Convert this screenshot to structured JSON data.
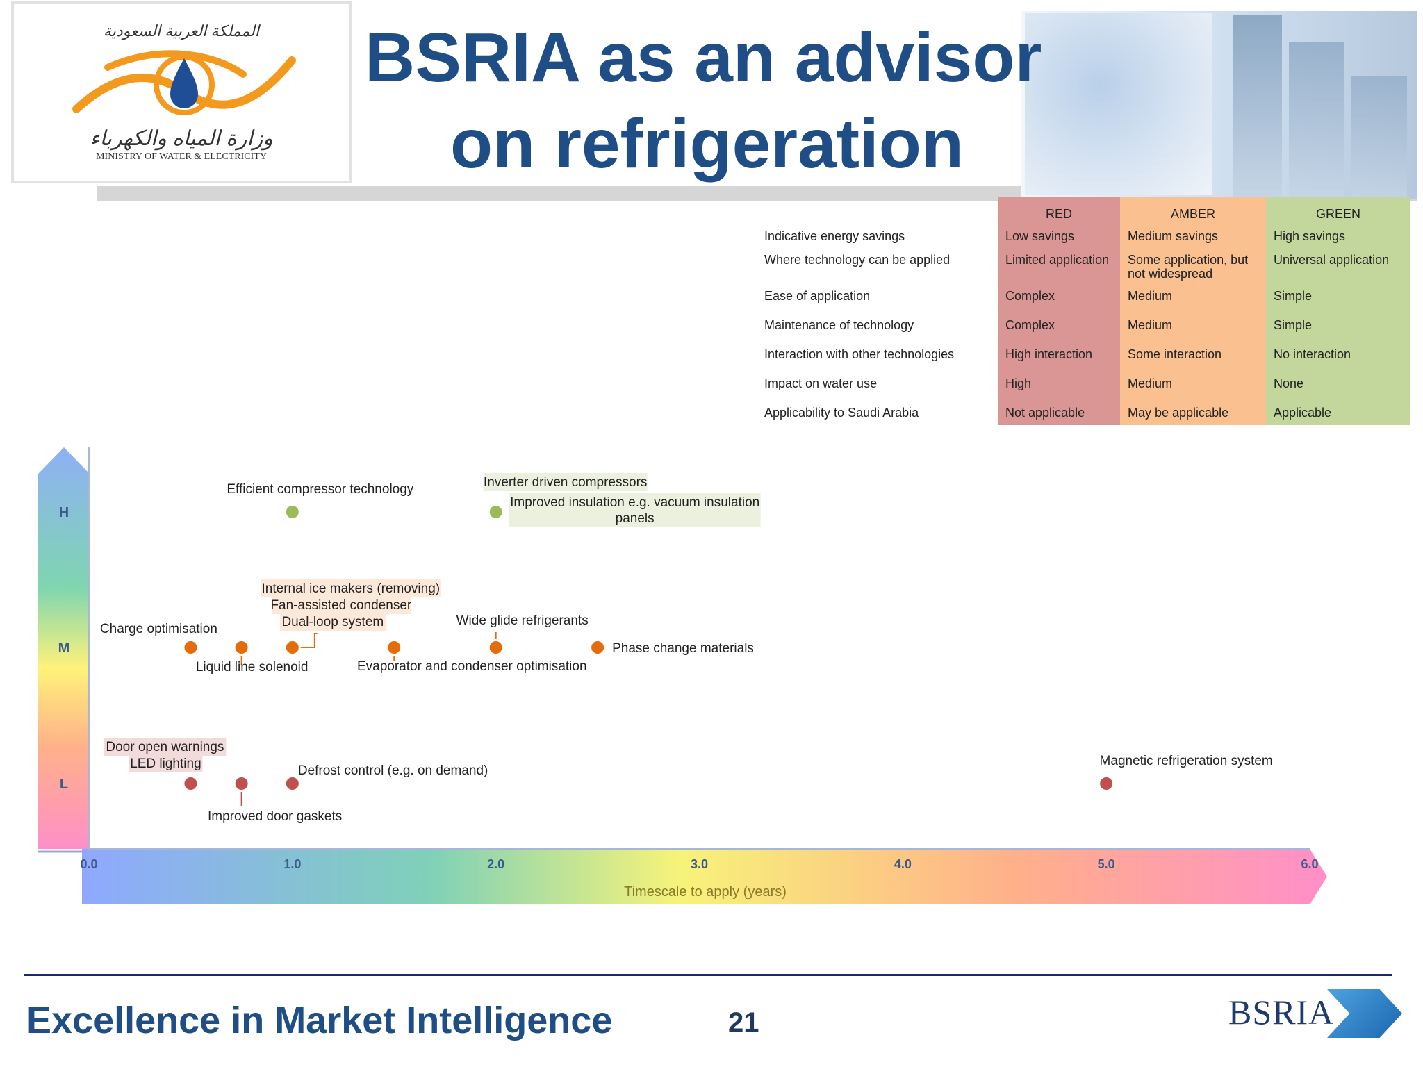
{
  "header": {
    "title_line1": "BSRIA as an advisor",
    "title_line2": "on refrigeration",
    "logo": {
      "arabic_top": "المملكة العربية السعودية",
      "arabic_bottom": "وزارة المياه والكهرباء",
      "english": "MINISTRY OF WATER & ELECTRICITY"
    }
  },
  "legend": {
    "headers": [
      "RED",
      "AMBER",
      "GREEN"
    ],
    "colors": {
      "red": "#d99694",
      "amber": "#fac090",
      "green": "#c3d69b"
    },
    "rows": [
      {
        "label": "Indicative energy savings",
        "red": "Low savings",
        "amber": "Medium savings",
        "green": "High savings"
      },
      {
        "label": "Where technology can be applied",
        "red": "Limited application",
        "amber": "Some application, but not widespread",
        "green": "Universal application"
      },
      {
        "label": "Ease of application",
        "red": "Complex",
        "amber": "Medium",
        "green": "Simple"
      },
      {
        "label": "Maintenance of technology",
        "red": "Complex",
        "amber": "Medium",
        "green": "Simple"
      },
      {
        "label": "Interaction with other technologies",
        "red": "High interaction",
        "amber": "Some interaction",
        "green": "No interaction"
      },
      {
        "label": "Impact on water use",
        "red": "High",
        "amber": "Medium",
        "green": "None"
      },
      {
        "label": "Applicability to Saudi Arabia",
        "red": "Not applicable",
        "amber": "May be applicable",
        "green": "Applicable"
      }
    ]
  },
  "chart_data": {
    "type": "scatter",
    "xlabel": "Timescale to apply (years)",
    "xlim": [
      0,
      6
    ],
    "x_ticks": [
      "0.0",
      "1.0",
      "2.0",
      "3.0",
      "4.0",
      "5.0",
      "6.0"
    ],
    "y_categories": [
      "L",
      "M",
      "H"
    ],
    "colors": {
      "green": "#9bbb59",
      "amber": "#e46c0a",
      "red": "#c0504d"
    },
    "points": [
      {
        "x": 1.0,
        "y": "H",
        "color": "green",
        "labels": [
          "Efficient compressor technology"
        ]
      },
      {
        "x": 2.0,
        "y": "H",
        "color": "green",
        "labels": [
          "Inverter driven compressors",
          "Improved insulation e.g. vacuum insulation panels"
        ]
      },
      {
        "x": 0.5,
        "y": "M",
        "color": "amber",
        "labels": [
          "Charge optimisation"
        ]
      },
      {
        "x": 0.75,
        "y": "M",
        "color": "amber",
        "labels": [
          "Liquid line solenoid"
        ]
      },
      {
        "x": 1.0,
        "y": "M",
        "color": "amber",
        "labels": [
          "Internal ice makers (removing)",
          "Fan-assisted condenser",
          "Dual-loop system"
        ]
      },
      {
        "x": 1.5,
        "y": "M",
        "color": "amber",
        "labels": [
          "Evaporator and condenser optimisation"
        ]
      },
      {
        "x": 2.0,
        "y": "M",
        "color": "amber",
        "labels": [
          "Wide glide refrigerants"
        ]
      },
      {
        "x": 2.5,
        "y": "M",
        "color": "amber",
        "labels": [
          "Phase change materials"
        ]
      },
      {
        "x": 0.5,
        "y": "L",
        "color": "red",
        "labels": [
          "Door open warnings",
          "LED lighting"
        ]
      },
      {
        "x": 0.75,
        "y": "L",
        "color": "red",
        "labels": [
          "Improved door gaskets"
        ]
      },
      {
        "x": 1.0,
        "y": "L",
        "color": "red",
        "labels": [
          "Defrost control (e.g. on demand)"
        ]
      },
      {
        "x": 5.0,
        "y": "L",
        "color": "red",
        "labels": [
          "Magnetic refrigeration system"
        ]
      }
    ]
  },
  "footer": {
    "slogan": "Excellence in Market Intelligence",
    "page_number": "21",
    "brand": "BSRIA"
  }
}
